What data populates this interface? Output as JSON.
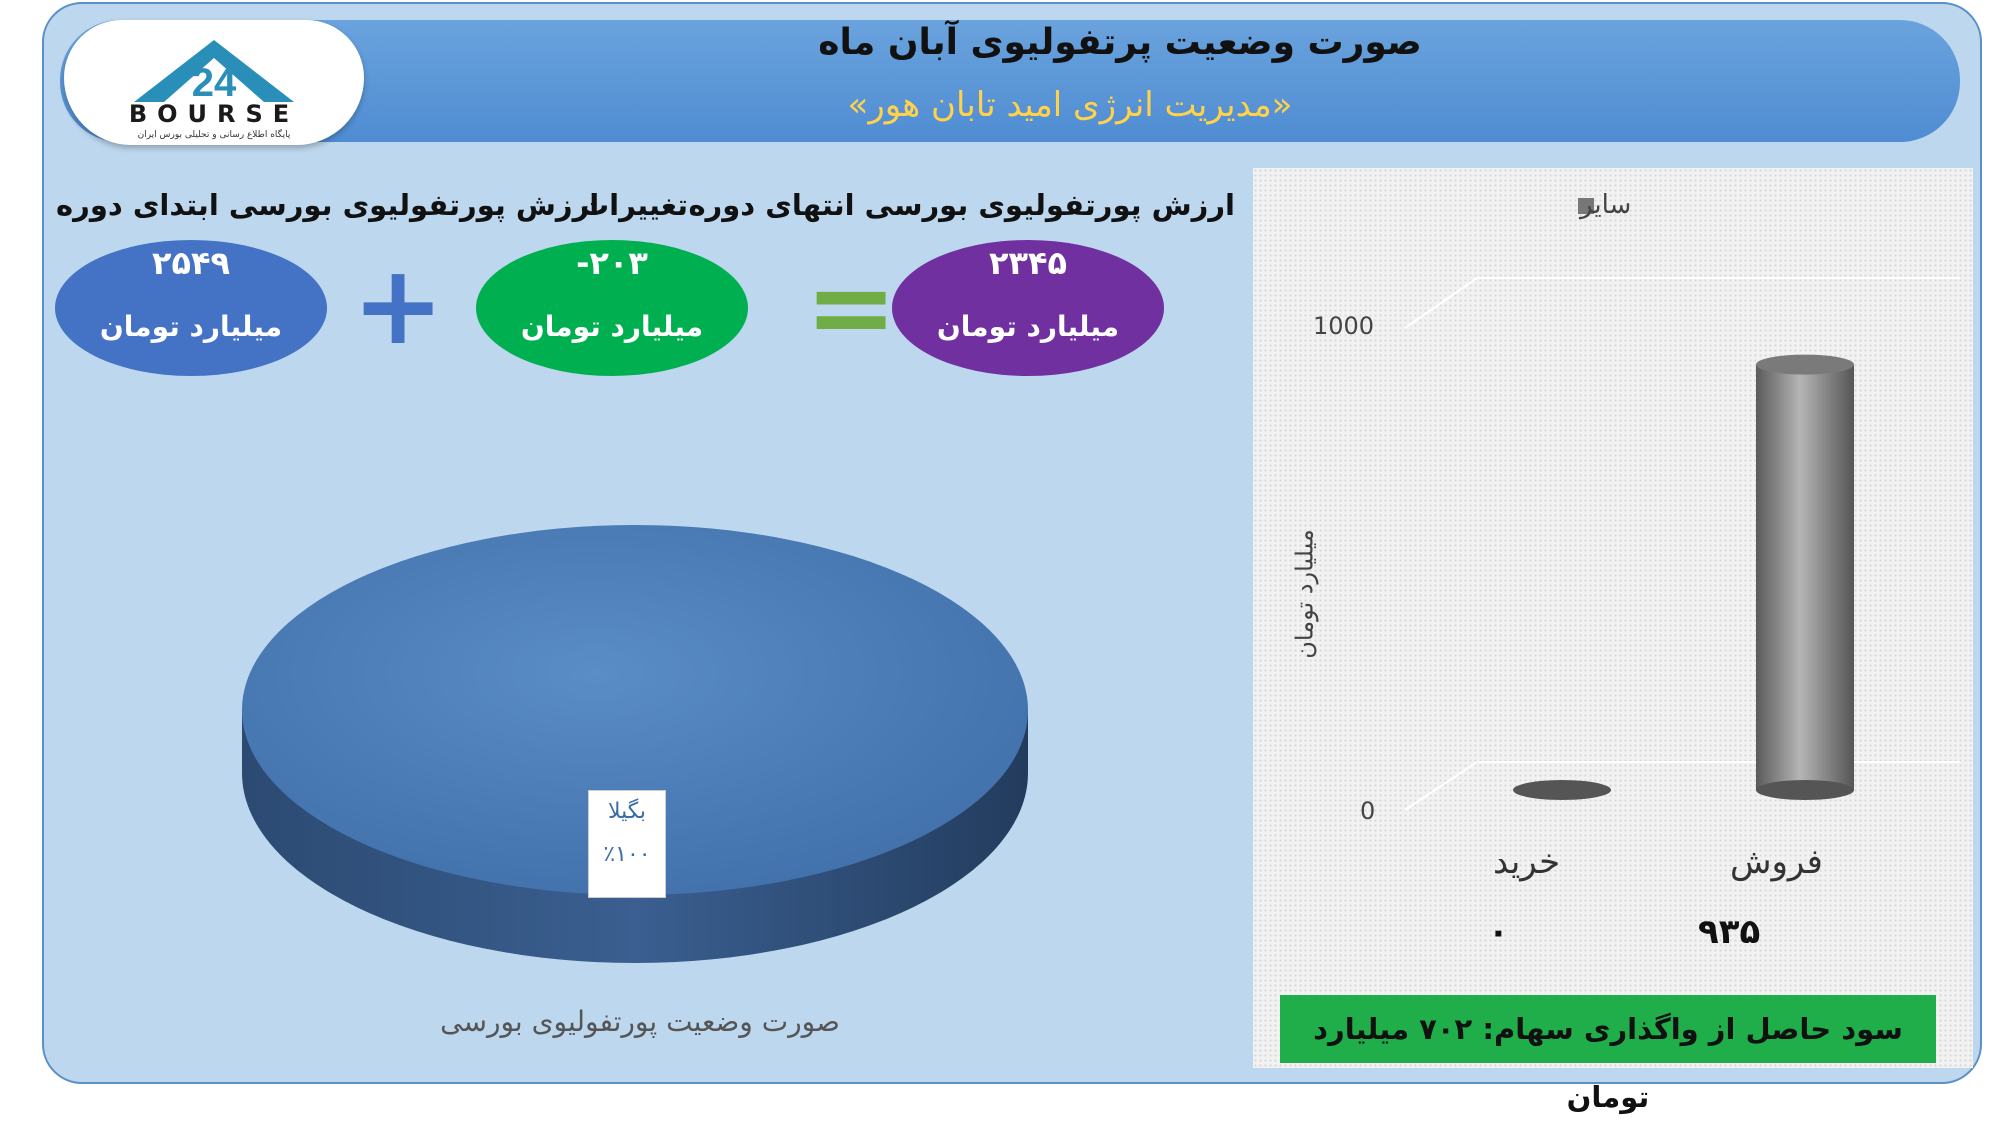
{
  "header": {
    "title": "صورت وضعیت پرتفولیوی آبان ماه",
    "subtitle": "«مدیریت انرژی امید تابان هور»",
    "logo_text": "BOURSE",
    "logo_sub": "پایگاه اطلاع رسانی و تحلیلی بورس ایران"
  },
  "summary": {
    "end": {
      "label": "ارزش پورتفولیوی بورسی انتهای دوره",
      "value": "۲۳۴۵",
      "unit": "میلیارد تومان",
      "color": "#7030a0"
    },
    "change": {
      "label": "تغییرات",
      "value": "-۲۰۳",
      "unit": "میلیارد تومان",
      "color": "#00b050"
    },
    "start": {
      "label": "ارزش پورتفولیوی بورسی ابتدای دوره",
      "value": "۲۵۴۹",
      "unit": "میلیارد تومان",
      "color": "#4472c4"
    },
    "plus": "+",
    "equals": "="
  },
  "chart_data": [
    {
      "type": "pie",
      "title": "صورت وضعیت پورتفولیوی بورسی",
      "slices": [
        {
          "label": "بگیلا",
          "value": 100,
          "display": "٪۱۰۰",
          "color": "#4f81bd"
        }
      ]
    },
    {
      "type": "bar",
      "categories": [
        "فروش",
        "خرید"
      ],
      "series": [
        {
          "name": "سایر",
          "values": [
            935,
            0
          ],
          "display": [
            "۹۳۵",
            "۰"
          ],
          "color": "#7f7f7f"
        }
      ],
      "ylabel": "میلیارد تومان",
      "yticks": [
        "0",
        "1000"
      ],
      "ylim": [
        0,
        1000
      ]
    }
  ],
  "banner": {
    "text": "سود حاصل از واگذاری سهام: ۷۰۲ میلیارد تومان",
    "color": "#1fae4a"
  }
}
